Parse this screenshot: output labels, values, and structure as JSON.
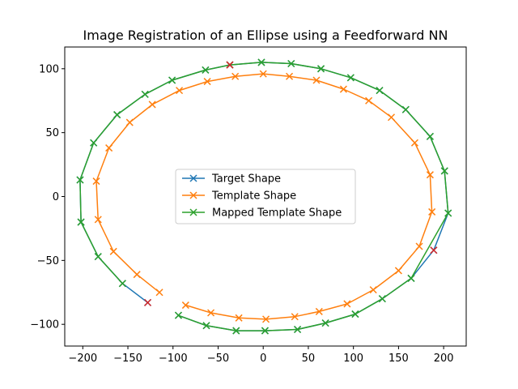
{
  "chart_data": {
    "type": "line",
    "title": "Image Registration of an Ellipse using a Feedforward NN",
    "xlabel": "",
    "ylabel": "",
    "xlim": [
      -220,
      225
    ],
    "ylim": [
      -117,
      117
    ],
    "xticks": [
      -200,
      -150,
      -100,
      -50,
      0,
      50,
      100,
      150,
      200
    ],
    "yticks": [
      -100,
      -50,
      0,
      50,
      100
    ],
    "grid": false,
    "legend": "center",
    "marker": "x",
    "series": [
      {
        "name": "Target Shape",
        "color": "#1f77b4",
        "points": [
          [
            -128,
            -83
          ],
          [
            -156,
            -68
          ],
          [
            -183,
            -47
          ],
          [
            -202,
            -20
          ],
          [
            -203,
            13
          ],
          [
            -188,
            42
          ],
          [
            -162,
            64
          ],
          [
            -131,
            80
          ],
          [
            -101,
            91
          ],
          [
            -64,
            99
          ],
          [
            -37,
            103
          ],
          [
            -2,
            105
          ],
          [
            31,
            104
          ],
          [
            64,
            100
          ],
          [
            97,
            93
          ],
          [
            129,
            83
          ],
          [
            158,
            68
          ],
          [
            185,
            47
          ],
          [
            201,
            20
          ],
          [
            205,
            -13
          ],
          [
            189,
            -42
          ],
          [
            164,
            -64
          ],
          [
            132,
            -80
          ],
          [
            102,
            -92
          ],
          [
            69,
            -99
          ],
          [
            38,
            -104
          ],
          [
            2,
            -105
          ],
          [
            -30,
            -105
          ],
          [
            -63,
            -101
          ],
          [
            -94,
            -93
          ]
        ]
      },
      {
        "name": "Template Shape",
        "color": "#ff7f0e",
        "points": [
          [
            -115,
            -75
          ],
          [
            -140,
            -61
          ],
          [
            -166,
            -43
          ],
          [
            -183,
            -18
          ],
          [
            -185,
            12
          ],
          [
            -171,
            38
          ],
          [
            -148,
            58
          ],
          [
            -123,
            72
          ],
          [
            -93,
            83
          ],
          [
            -62,
            90
          ],
          [
            -31,
            94
          ],
          [
            0,
            96
          ],
          [
            29,
            94
          ],
          [
            59,
            91
          ],
          [
            89,
            84
          ],
          [
            117,
            75
          ],
          [
            142,
            62
          ],
          [
            168,
            42
          ],
          [
            185,
            17
          ],
          [
            187,
            -12
          ],
          [
            173,
            -39
          ],
          [
            150,
            -58
          ],
          [
            122,
            -73
          ],
          [
            93,
            -84
          ],
          [
            62,
            -90
          ],
          [
            35,
            -94
          ],
          [
            3,
            -96
          ],
          [
            -27,
            -95
          ],
          [
            -58,
            -91
          ],
          [
            -86,
            -85
          ]
        ]
      },
      {
        "name": "Mapped Template Shape",
        "color": "#2ca02c",
        "points": [
          [
            -156,
            -68
          ],
          [
            -183,
            -47
          ],
          [
            -202,
            -20
          ],
          [
            -203,
            13
          ],
          [
            -188,
            42
          ],
          [
            -162,
            64
          ],
          [
            -131,
            80
          ],
          [
            -101,
            91
          ],
          [
            -64,
            99
          ],
          [
            -37,
            103
          ],
          [
            -2,
            105
          ],
          [
            31,
            104
          ],
          [
            64,
            100
          ],
          [
            97,
            93
          ],
          [
            129,
            83
          ],
          [
            158,
            68
          ],
          [
            185,
            47
          ],
          [
            201,
            20
          ],
          [
            205,
            -13
          ],
          [
            164,
            -64
          ],
          [
            132,
            -80
          ],
          [
            102,
            -92
          ],
          [
            69,
            -99
          ],
          [
            38,
            -104
          ],
          [
            2,
            -105
          ],
          [
            -30,
            -105
          ],
          [
            -63,
            -101
          ],
          [
            -94,
            -93
          ]
        ]
      }
    ],
    "highlight_points": {
      "color": "#d62728",
      "points": [
        [
          -128,
          -83
        ],
        [
          -37,
          103
        ],
        [
          189,
          -42
        ]
      ]
    }
  }
}
